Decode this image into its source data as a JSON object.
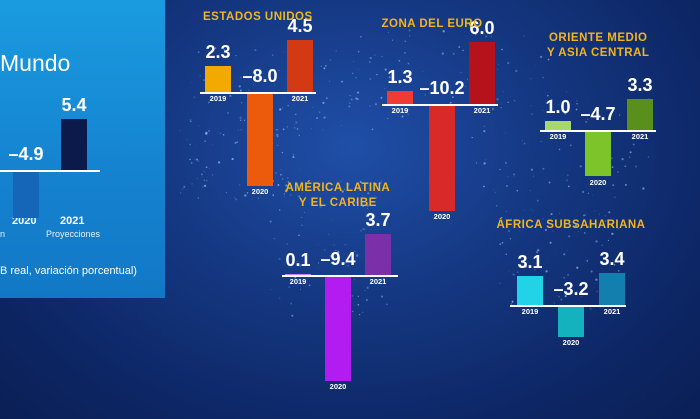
{
  "note": "B real, variación porcentual)",
  "chart_data": [
    {
      "type": "bar",
      "title": "Mundo",
      "categories": [
        "2020",
        "2021"
      ],
      "values": [
        -4.9,
        5.4
      ],
      "value_labels": [
        "–4.9",
        "5.4"
      ],
      "sublabels": [
        "n",
        "Proyecciones"
      ],
      "colors": [
        "#1565b8",
        "#0b1a4a"
      ]
    },
    {
      "type": "bar",
      "title": "ESTADOS UNIDOS",
      "categories": [
        "2019",
        "2020",
        "2021"
      ],
      "values": [
        2.3,
        -8.0,
        4.5
      ],
      "value_labels": [
        "2.3",
        "–8.0",
        "4.5"
      ],
      "colors": [
        "#f2a900",
        "#ec5a0c",
        "#d33a14"
      ]
    },
    {
      "type": "bar",
      "title": "ZONA DEL EURO",
      "categories": [
        "2019",
        "2020",
        "2021"
      ],
      "values": [
        1.3,
        -10.2,
        6.0
      ],
      "value_labels": [
        "1.3",
        "–10.2",
        "6.0"
      ],
      "colors": [
        "#ee3b34",
        "#d92a2a",
        "#b5121b"
      ]
    },
    {
      "type": "bar",
      "title": "ORIENTE MEDIO\nY ASIA CENTRAL",
      "categories": [
        "2019",
        "2020",
        "2021"
      ],
      "values": [
        1.0,
        -4.7,
        3.3
      ],
      "value_labels": [
        "1.0",
        "–4.7",
        "3.3"
      ],
      "colors": [
        "#a6d96a",
        "#7dc42a",
        "#5a8f1c"
      ]
    },
    {
      "type": "bar",
      "title": "AMÉRICA LATINA\nY EL CARIBE",
      "categories": [
        "2019",
        "2020",
        "2021"
      ],
      "values": [
        0.1,
        -9.4,
        3.7
      ],
      "value_labels": [
        "0.1",
        "–9.4",
        "3.7"
      ],
      "colors": [
        "#c77dff",
        "#b31cf0",
        "#7b2fa8"
      ]
    },
    {
      "type": "bar",
      "title": "ÁFRICA SUBSAHARIANA",
      "categories": [
        "2019",
        "2020",
        "2021"
      ],
      "values": [
        3.1,
        -3.2,
        3.4
      ],
      "value_labels": [
        "3.1",
        "–3.2",
        "3.4"
      ],
      "colors": [
        "#22d3e8",
        "#14b2be",
        "#137fae"
      ]
    }
  ]
}
